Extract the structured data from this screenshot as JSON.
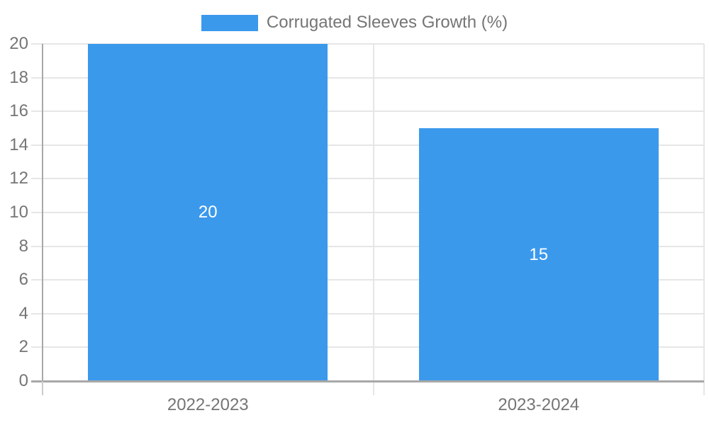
{
  "chart_data": {
    "type": "bar",
    "legend": "Corrugated Sleeves Growth (%)",
    "categories": [
      "2022-2023",
      "2023-2024"
    ],
    "values": [
      20,
      15
    ],
    "bar_labels": [
      "20",
      "15"
    ],
    "ylim": [
      0,
      20
    ],
    "ytick_step": 2,
    "yticks": [
      0,
      2,
      4,
      6,
      8,
      10,
      12,
      14,
      16,
      18,
      20
    ],
    "grid": true,
    "legend_position": "top-center",
    "bar_label_position": "center-inside",
    "colors": {
      "bar": "#3B99EC",
      "bar_label": "#FFFFFF",
      "axis_text": "#757575",
      "gridline": "#E6E6E6",
      "axis_line": "#A8A8A8"
    }
  }
}
